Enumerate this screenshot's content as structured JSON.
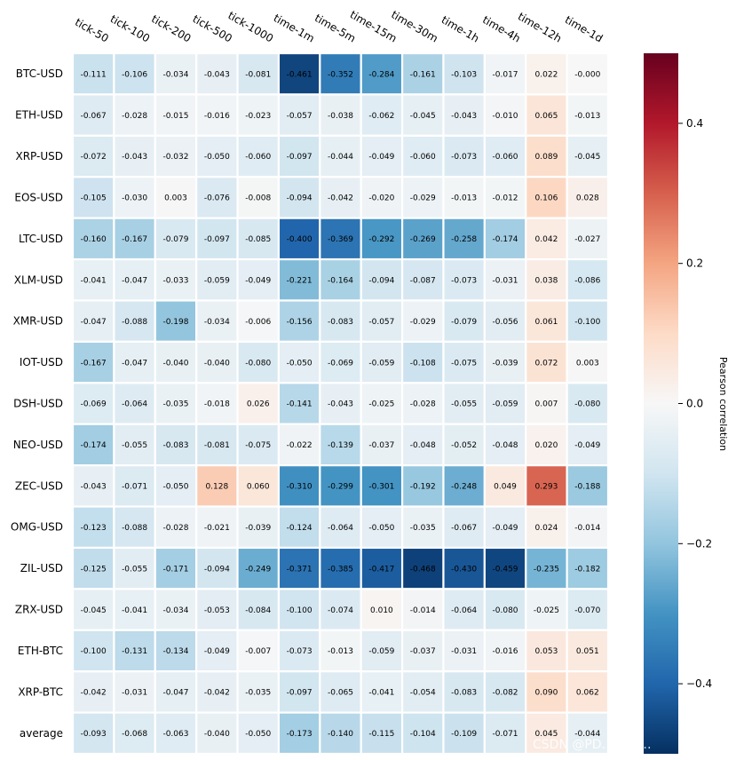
{
  "chart_data": {
    "type": "heatmap",
    "title": "",
    "columns": [
      "tick-50",
      "tick-100",
      "tick-200",
      "tick-500",
      "tick-1000",
      "time-1m",
      "time-5m",
      "time-15m",
      "time-30m",
      "time-1h",
      "time-4h",
      "time-12h",
      "time-1d"
    ],
    "rows": [
      "BTC-USD",
      "ETH-USD",
      "XRP-USD",
      "EOS-USD",
      "LTC-USD",
      "XLM-USD",
      "XMR-USD",
      "IOT-USD",
      "DSH-USD",
      "NEO-USD",
      "ZEC-USD",
      "OMG-USD",
      "ZIL-USD",
      "ZRX-USD",
      "ETH-BTC",
      "XRP-BTC",
      "average"
    ],
    "values": [
      [
        "-0.111",
        "-0.106",
        "-0.034",
        "-0.043",
        "-0.081",
        "-0.461",
        "-0.352",
        "-0.284",
        "-0.161",
        "-0.103",
        "-0.017",
        "0.022",
        "-0.000"
      ],
      [
        "-0.067",
        "-0.028",
        "-0.015",
        "-0.016",
        "-0.023",
        "-0.057",
        "-0.038",
        "-0.062",
        "-0.045",
        "-0.043",
        "-0.010",
        "0.065",
        "-0.013"
      ],
      [
        "-0.072",
        "-0.043",
        "-0.032",
        "-0.050",
        "-0.060",
        "-0.097",
        "-0.044",
        "-0.049",
        "-0.060",
        "-0.073",
        "-0.060",
        "0.089",
        "-0.045"
      ],
      [
        "-0.105",
        "-0.030",
        "0.003",
        "-0.076",
        "-0.008",
        "-0.094",
        "-0.042",
        "-0.020",
        "-0.029",
        "-0.013",
        "-0.012",
        "0.106",
        "0.028"
      ],
      [
        "-0.160",
        "-0.167",
        "-0.079",
        "-0.097",
        "-0.085",
        "-0.400",
        "-0.369",
        "-0.292",
        "-0.269",
        "-0.258",
        "-0.174",
        "0.042",
        "-0.027"
      ],
      [
        "-0.041",
        "-0.047",
        "-0.033",
        "-0.059",
        "-0.049",
        "-0.221",
        "-0.164",
        "-0.094",
        "-0.087",
        "-0.073",
        "-0.031",
        "0.038",
        "-0.086"
      ],
      [
        "-0.047",
        "-0.088",
        "-0.198",
        "-0.034",
        "-0.006",
        "-0.156",
        "-0.083",
        "-0.057",
        "-0.029",
        "-0.079",
        "-0.056",
        "0.061",
        "-0.100"
      ],
      [
        "-0.167",
        "-0.047",
        "-0.040",
        "-0.040",
        "-0.080",
        "-0.050",
        "-0.069",
        "-0.059",
        "-0.108",
        "-0.075",
        "-0.039",
        "0.072",
        "0.003"
      ],
      [
        "-0.069",
        "-0.064",
        "-0.035",
        "-0.018",
        "0.026",
        "-0.141",
        "-0.043",
        "-0.025",
        "-0.028",
        "-0.055",
        "-0.059",
        "0.007",
        "-0.080"
      ],
      [
        "-0.174",
        "-0.055",
        "-0.083",
        "-0.081",
        "-0.075",
        "-0.022",
        "-0.139",
        "-0.037",
        "-0.048",
        "-0.052",
        "-0.048",
        "0.020",
        "-0.049"
      ],
      [
        "-0.043",
        "-0.071",
        "-0.050",
        "0.128",
        "0.060",
        "-0.310",
        "-0.299",
        "-0.301",
        "-0.192",
        "-0.248",
        "0.049",
        "0.293",
        "-0.188"
      ],
      [
        "-0.123",
        "-0.088",
        "-0.028",
        "-0.021",
        "-0.039",
        "-0.124",
        "-0.064",
        "-0.050",
        "-0.035",
        "-0.067",
        "-0.049",
        "0.024",
        "-0.014"
      ],
      [
        "-0.125",
        "-0.055",
        "-0.171",
        "-0.094",
        "-0.249",
        "-0.371",
        "-0.385",
        "-0.417",
        "-0.468",
        "-0.430",
        "-0.459",
        "-0.235",
        "-0.182"
      ],
      [
        "-0.045",
        "-0.041",
        "-0.034",
        "-0.053",
        "-0.084",
        "-0.100",
        "-0.074",
        "0.010",
        "-0.014",
        "-0.064",
        "-0.080",
        "-0.025",
        "-0.070"
      ],
      [
        "-0.100",
        "-0.131",
        "-0.134",
        "-0.049",
        "-0.007",
        "-0.073",
        "-0.013",
        "-0.059",
        "-0.037",
        "-0.031",
        "-0.016",
        "0.053",
        "0.051"
      ],
      [
        "-0.042",
        "-0.031",
        "-0.047",
        "-0.042",
        "-0.035",
        "-0.097",
        "-0.065",
        "-0.041",
        "-0.054",
        "-0.083",
        "-0.082",
        "0.090",
        "0.062"
      ],
      [
        "-0.093",
        "-0.068",
        "-0.063",
        "-0.040",
        "-0.050",
        "-0.173",
        "-0.140",
        "-0.115",
        "-0.104",
        "-0.109",
        "-0.071",
        "0.045",
        "-0.044"
      ]
    ],
    "colormap": "RdBu_r",
    "vmin": -0.5,
    "vmax": 0.5,
    "colorbar": {
      "label": "Pearson correlation",
      "ticks": [
        0.4,
        0.2,
        0.0,
        -0.2,
        -0.4
      ],
      "tick_labels": [
        "0.4",
        "0.2",
        "0.0",
        "−0.2",
        "−0.4"
      ]
    }
  },
  "watermark": "CSDN @PD…你的…"
}
